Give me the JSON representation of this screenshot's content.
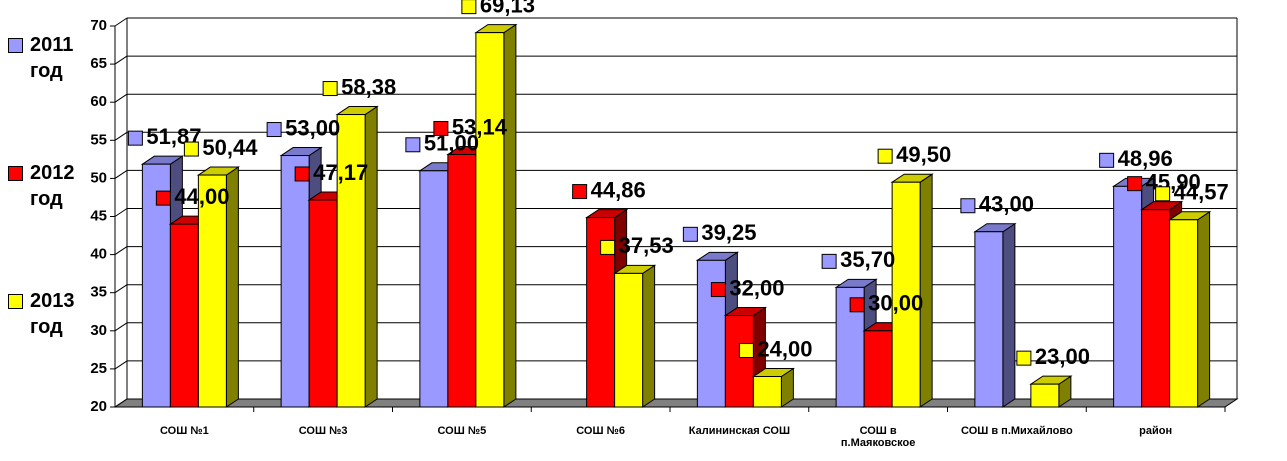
{
  "chart_data": {
    "type": "bar3d",
    "categories": [
      "СОШ №1",
      "СОШ №3",
      "СОШ №5",
      "СОШ №6",
      "Калининская СОШ",
      "СОШ в п.Маяковское",
      "СОШ в п.Михайлово",
      "район"
    ],
    "series": [
      {
        "name": "2011 год",
        "color": "#9999ff",
        "values": [
          51.87,
          53.0,
          51.0,
          null,
          39.25,
          35.7,
          43.0,
          48.96
        ],
        "value_labels": [
          "51,87",
          "53,00",
          "51,00",
          null,
          "39,25",
          "35,70",
          "43,00",
          "48,96"
        ]
      },
      {
        "name": "2012 год",
        "color": "#ff0000",
        "values": [
          44.0,
          47.17,
          53.14,
          44.86,
          32.0,
          30.0,
          null,
          45.9
        ],
        "value_labels": [
          "44,00",
          "47,17",
          "53,14",
          "44,86",
          "32,00",
          "30,00",
          null,
          "45,90"
        ]
      },
      {
        "name": "2013 год",
        "color": "#ffff00",
        "values": [
          50.44,
          58.38,
          69.13,
          37.53,
          24.0,
          49.5,
          23.0,
          44.57
        ],
        "value_labels": [
          "50,44",
          "58,38",
          "69,13",
          "37,53",
          "24,00",
          "49,50",
          "23,00",
          "44,57"
        ]
      }
    ],
    "ylim": [
      20,
      70
    ],
    "yticks": [
      20,
      25,
      30,
      35,
      40,
      45,
      50,
      55,
      60,
      65,
      70
    ],
    "grid": true,
    "legend": "left"
  }
}
